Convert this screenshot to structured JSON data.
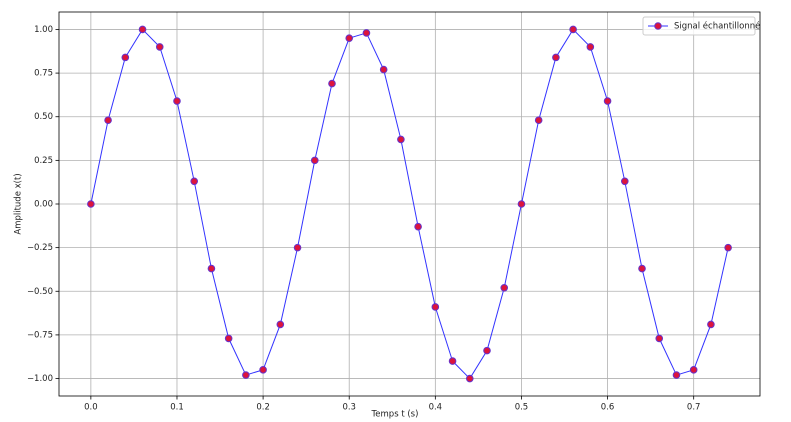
{
  "chart_data": {
    "type": "line",
    "xlabel": "Temps t (s)",
    "ylabel": "Amplitude x(t)",
    "x": [
      0,
      0.02,
      0.04,
      0.06,
      0.08,
      0.1,
      0.12,
      0.14,
      0.16,
      0.18,
      0.2,
      0.22,
      0.24,
      0.26,
      0.28,
      0.3,
      0.32,
      0.34,
      0.36,
      0.38,
      0.4,
      0.42,
      0.44,
      0.46,
      0.48,
      0.5,
      0.52,
      0.54,
      0.56,
      0.58,
      0.6,
      0.62,
      0.64,
      0.66,
      0.68,
      0.7,
      0.72,
      0.74
    ],
    "series": [
      {
        "name": "Signal échantillonné",
        "color": "#3333ff",
        "marker_color": "#dc143c",
        "marker_edge": "#6633cc",
        "values": [
          0,
          0.48,
          0.84,
          1.0,
          0.9,
          0.59,
          0.13,
          -0.37,
          -0.77,
          -0.98,
          -0.95,
          -0.69,
          -0.25,
          0.25,
          0.69,
          0.95,
          0.98,
          0.77,
          0.37,
          -0.13,
          -0.59,
          -0.9,
          -1.0,
          -0.84,
          -0.48,
          0,
          0.48,
          0.84,
          1.0,
          0.9,
          0.59,
          0.13,
          -0.37,
          -0.77,
          -0.98,
          -0.95,
          -0.69,
          -0.25
        ]
      }
    ],
    "xlim": [
      -0.037,
      0.777
    ],
    "ylim": [
      -1.1,
      1.1
    ],
    "xticks": [
      {
        "value": 0,
        "label": "0.0"
      },
      0.1,
      0.2,
      0.3,
      0.4,
      0.5,
      0.6,
      0.7
    ],
    "yticks": [
      {
        "value": -1,
        "label": "−1.00"
      },
      {
        "value": -0.75,
        "label": "−0.75"
      },
      {
        "value": -0.5,
        "label": "−0.50"
      },
      {
        "value": -0.25,
        "label": "−0.25"
      },
      {
        "value": 0,
        "label": "0.00"
      },
      {
        "value": 0.25,
        "label": "0.25"
      },
      {
        "value": 0.5,
        "label": "0.50"
      },
      {
        "value": 0.75,
        "label": "0.75"
      },
      {
        "value": 1,
        "label": "1.00"
      }
    ],
    "grid": true,
    "legend": "upper right"
  }
}
